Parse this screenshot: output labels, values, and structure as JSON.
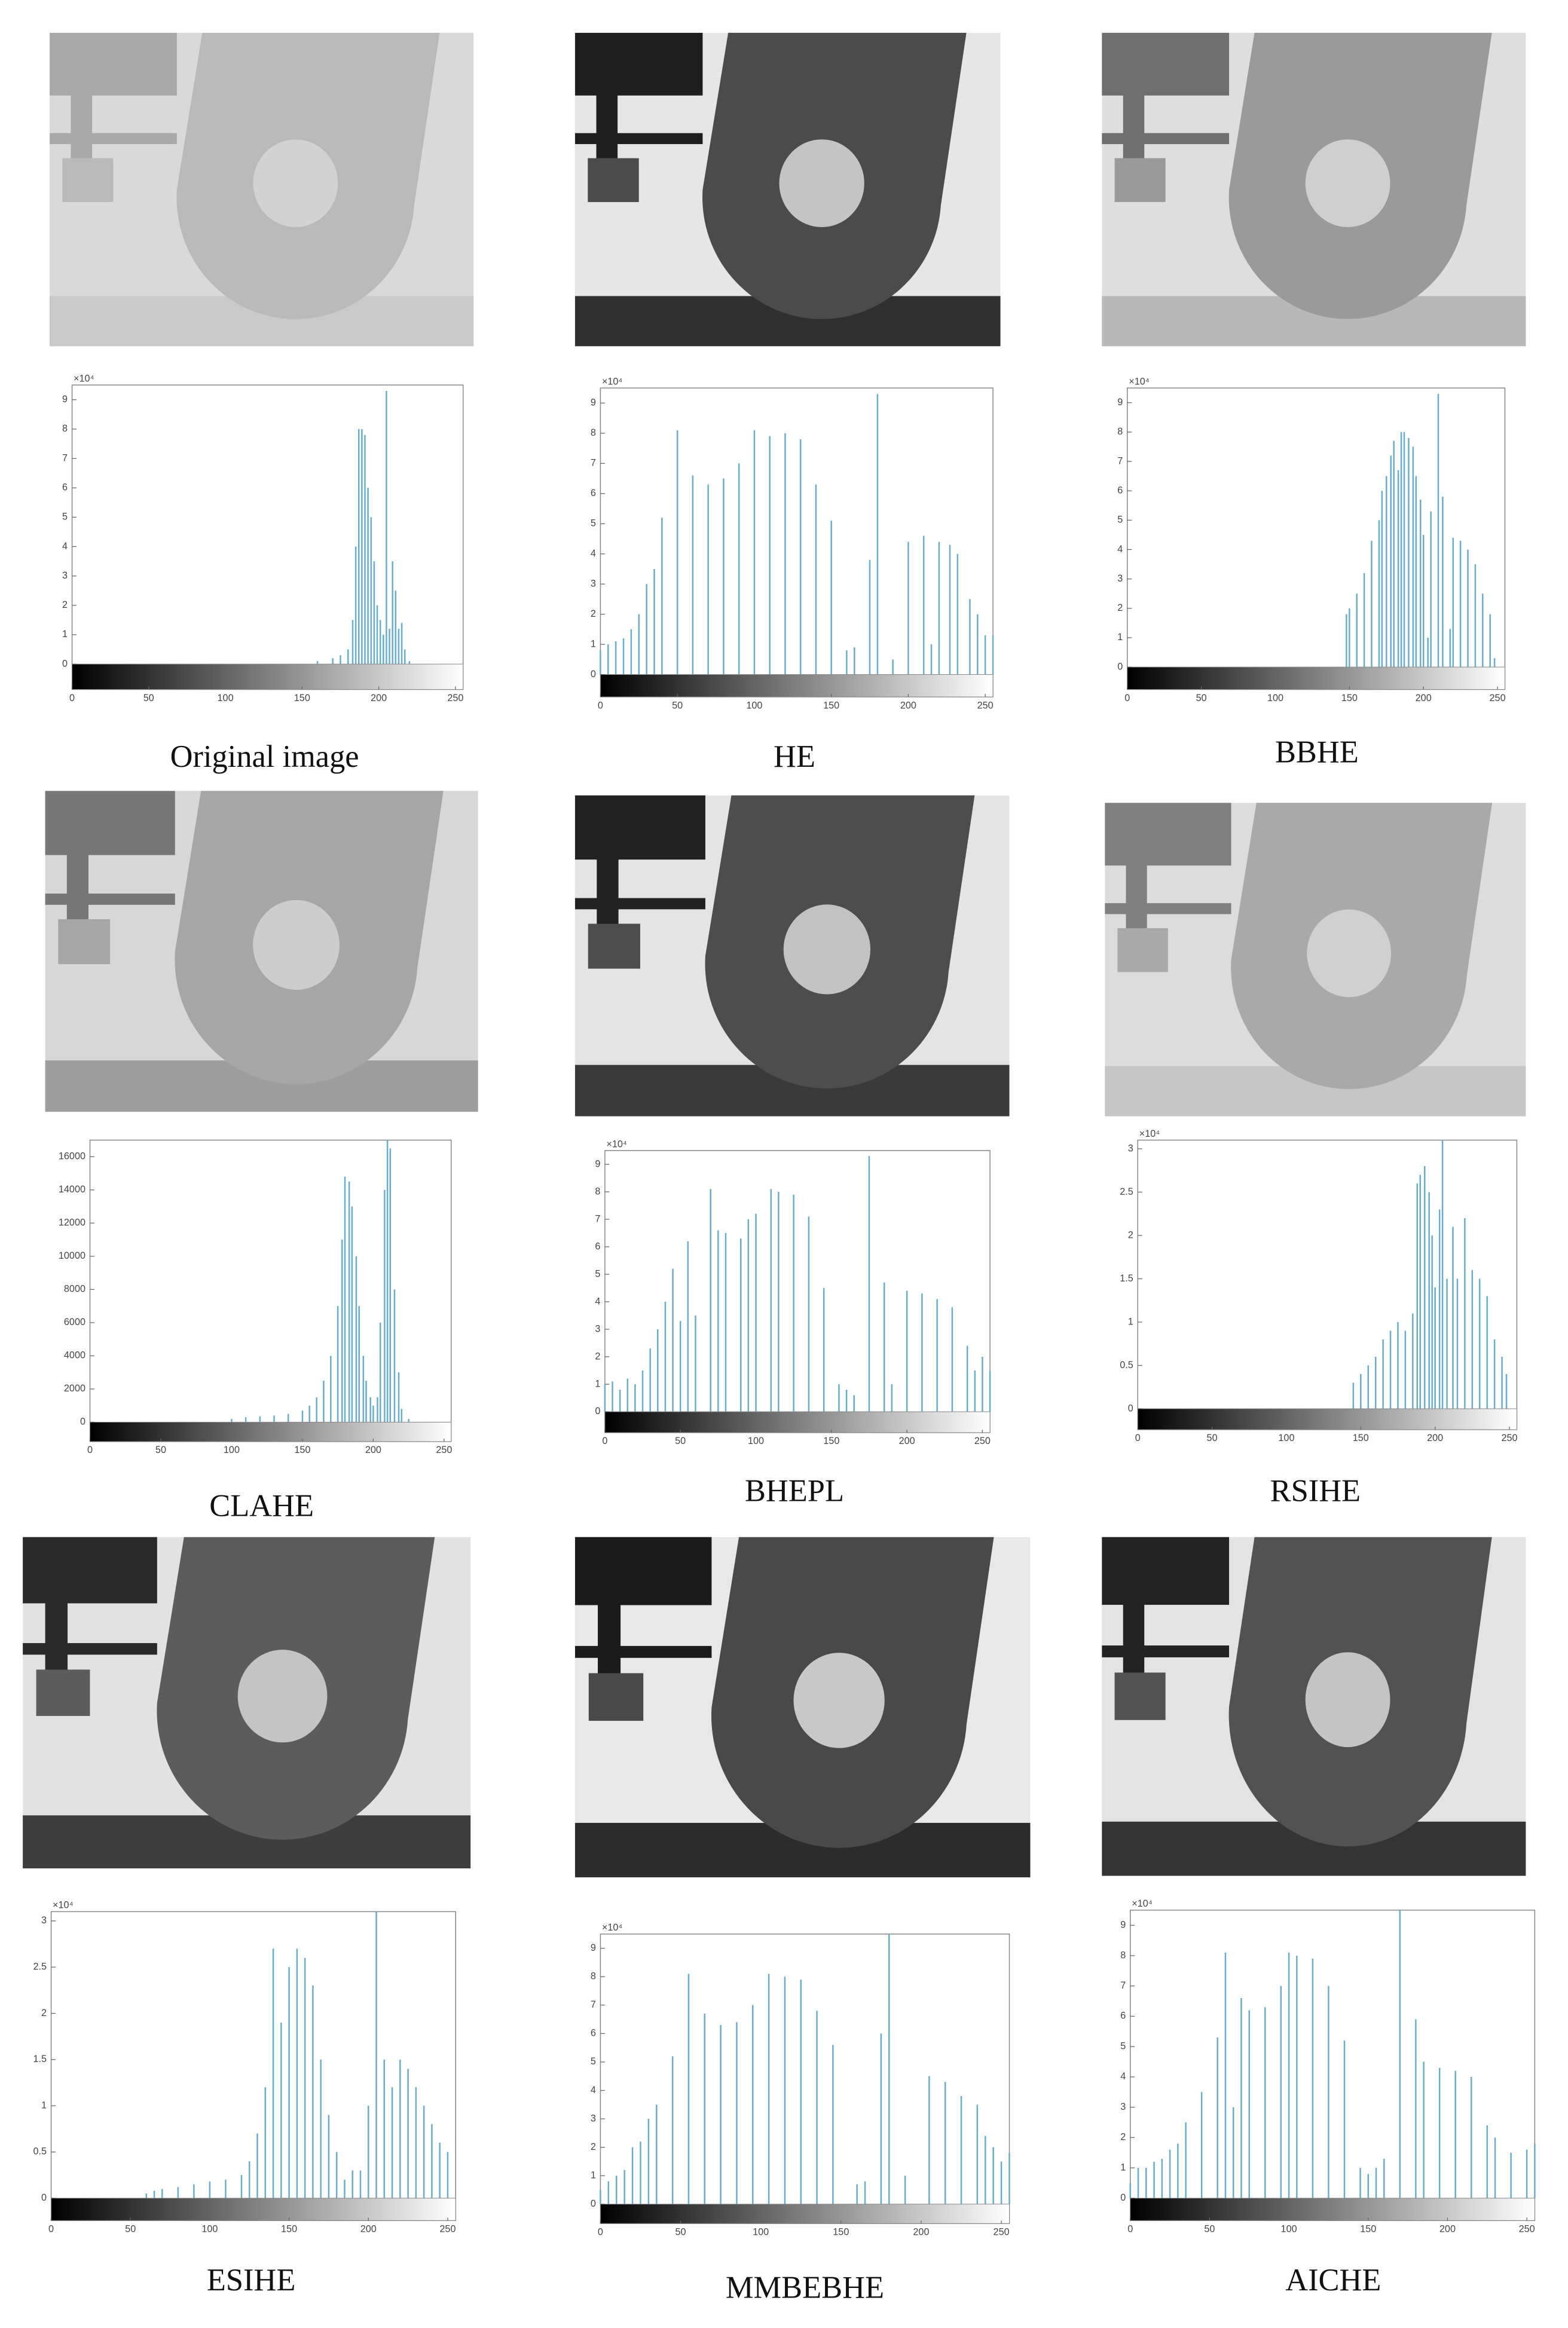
{
  "chart_data": [
    {
      "type": "bar",
      "caption": "Original image",
      "y_multiplier": "×10⁴",
      "color": "#6aaccb",
      "x": [
        160,
        170,
        175,
        180,
        183,
        185,
        187,
        189,
        191,
        193,
        195,
        197,
        199,
        201,
        203,
        205,
        207,
        209,
        211,
        213,
        215,
        217,
        220
      ],
      "values": [
        0.1,
        0.2,
        0.3,
        0.5,
        1.5,
        4,
        8,
        8,
        7.8,
        6,
        5,
        3.5,
        2,
        1.5,
        1,
        9.3,
        1.2,
        3.5,
        2.5,
        1.2,
        1.4,
        0.5,
        0.1
      ],
      "xlim": [
        0,
        255
      ],
      "xticks": [
        0,
        50,
        100,
        150,
        200,
        250
      ],
      "ylim": [
        0,
        9.5
      ],
      "yticks": [
        0,
        1,
        2,
        3,
        4,
        5,
        6,
        7,
        8,
        9
      ]
    },
    {
      "type": "bar",
      "caption": "HE",
      "y_multiplier": "×10⁴",
      "color": "#6aaccb",
      "x": [
        0,
        5,
        10,
        15,
        20,
        25,
        30,
        35,
        40,
        50,
        60,
        70,
        80,
        90,
        100,
        110,
        120,
        130,
        140,
        150,
        160,
        165,
        175,
        180,
        190,
        200,
        210,
        215,
        220,
        227,
        232,
        240,
        245,
        250,
        255
      ],
      "values": [
        0.8,
        1,
        1.1,
        1.2,
        1.5,
        2,
        3,
        3.5,
        5.2,
        8.1,
        6.6,
        6.3,
        6.5,
        7,
        8.1,
        7.9,
        8,
        7.8,
        6.3,
        5.1,
        0.8,
        0.9,
        3.8,
        9.3,
        0.5,
        4.4,
        4.6,
        1,
        4.4,
        4.3,
        4,
        2.5,
        2,
        1.3,
        1.3
      ],
      "xlim": [
        0,
        255
      ],
      "xticks": [
        0,
        50,
        100,
        150,
        200,
        250
      ],
      "ylim": [
        0,
        9.5
      ],
      "yticks": [
        0,
        1,
        2,
        3,
        4,
        5,
        6,
        7,
        8,
        9
      ]
    },
    {
      "type": "bar",
      "caption": "BBHE",
      "y_multiplier": "×10⁴",
      "color": "#6aaccb",
      "x": [
        148,
        150,
        155,
        160,
        165,
        170,
        172,
        175,
        178,
        180,
        183,
        185,
        187,
        190,
        193,
        195,
        198,
        200,
        203,
        205,
        210,
        213,
        218,
        220,
        225,
        230,
        235,
        240,
        245,
        248
      ],
      "values": [
        1.8,
        2,
        2.5,
        3.2,
        4.3,
        5,
        6,
        6.5,
        7.2,
        7.7,
        6.7,
        8,
        8,
        7.8,
        7.5,
        6.5,
        5.7,
        4.5,
        1,
        5.3,
        9.3,
        5.8,
        1.3,
        4.4,
        4.3,
        4,
        3.5,
        2.5,
        1.8,
        0.3
      ],
      "xlim": [
        0,
        255
      ],
      "xticks": [
        0,
        50,
        100,
        150,
        200,
        250
      ],
      "ylim": [
        0,
        9.5
      ],
      "yticks": [
        0,
        1,
        2,
        3,
        4,
        5,
        6,
        7,
        8,
        9
      ]
    },
    {
      "type": "bar",
      "caption": "CLAHE",
      "color": "#6aaccb",
      "x": [
        100,
        110,
        120,
        130,
        140,
        150,
        155,
        160,
        165,
        170,
        175,
        178,
        180,
        183,
        185,
        188,
        190,
        193,
        195,
        198,
        200,
        203,
        205,
        208,
        210,
        212,
        215,
        218,
        220,
        225
      ],
      "values": [
        200,
        300,
        350,
        400,
        500,
        700,
        1000,
        1500,
        2500,
        4000,
        7000,
        11000,
        14800,
        14500,
        13000,
        10000,
        7000,
        4000,
        2500,
        1500,
        1000,
        1500,
        6000,
        14000,
        17000,
        16500,
        8000,
        3000,
        800,
        200
      ],
      "xlim": [
        0,
        255
      ],
      "xticks": [
        0,
        50,
        100,
        150,
        200,
        250
      ],
      "ylim": [
        0,
        17000
      ],
      "yticks": [
        0,
        2000,
        4000,
        6000,
        8000,
        10000,
        12000,
        14000,
        16000
      ]
    },
    {
      "type": "bar",
      "caption": "BHEPL",
      "y_multiplier": "×10⁴",
      "color": "#6aaccb",
      "x": [
        0,
        5,
        10,
        15,
        20,
        25,
        30,
        35,
        40,
        45,
        50,
        55,
        60,
        70,
        75,
        80,
        90,
        95,
        100,
        110,
        115,
        125,
        135,
        145,
        155,
        160,
        165,
        175,
        185,
        190,
        200,
        210,
        220,
        230,
        240,
        245,
        250,
        255
      ],
      "values": [
        1,
        1.1,
        0.8,
        1.2,
        1,
        1.5,
        2.3,
        3,
        4,
        5.2,
        3.3,
        6.2,
        3.5,
        8.1,
        6.6,
        6.5,
        6.3,
        7,
        7.2,
        8.1,
        8,
        7.9,
        7.1,
        4.5,
        1,
        0.8,
        0.6,
        9.3,
        4.7,
        1,
        4.4,
        4.3,
        4.1,
        3.8,
        2.4,
        1.5,
        2,
        1.5
      ],
      "xlim": [
        0,
        255
      ],
      "xticks": [
        0,
        50,
        100,
        150,
        200,
        250
      ],
      "ylim": [
        0,
        9.5
      ],
      "yticks": [
        0,
        1,
        2,
        3,
        4,
        5,
        6,
        7,
        8,
        9
      ]
    },
    {
      "type": "bar",
      "caption": "RSIHE",
      "y_multiplier": "×10⁴",
      "color": "#6aaccb",
      "x": [
        145,
        150,
        155,
        160,
        165,
        170,
        175,
        180,
        185,
        188,
        190,
        193,
        196,
        198,
        200,
        203,
        205,
        208,
        212,
        215,
        220,
        225,
        230,
        235,
        240,
        245,
        248
      ],
      "values": [
        0.3,
        0.4,
        0.5,
        0.6,
        0.8,
        0.9,
        1,
        0.9,
        1.1,
        2.6,
        2.7,
        2.8,
        2.5,
        2,
        1.4,
        2.3,
        3.1,
        1.5,
        2.1,
        1.5,
        2.2,
        1.6,
        1.5,
        1.3,
        0.8,
        0.6,
        0.4
      ],
      "xlim": [
        0,
        255
      ],
      "xticks": [
        0,
        50,
        100,
        150,
        200,
        250
      ],
      "ylim": [
        0,
        3.1
      ],
      "yticks": [
        0,
        0.5,
        1,
        1.5,
        2,
        2.5,
        3
      ]
    },
    {
      "type": "bar",
      "caption": "ESIHE",
      "y_multiplier": "×10⁴",
      "color": "#6aaccb",
      "x": [
        60,
        65,
        70,
        80,
        90,
        100,
        110,
        120,
        125,
        130,
        135,
        140,
        145,
        150,
        155,
        160,
        165,
        170,
        175,
        180,
        185,
        190,
        195,
        200,
        205,
        210,
        215,
        220,
        225,
        230,
        235,
        240,
        245,
        250
      ],
      "values": [
        0.05,
        0.08,
        0.1,
        0.12,
        0.15,
        0.18,
        0.2,
        0.25,
        0.4,
        0.7,
        1.2,
        2.7,
        1.9,
        2.5,
        2.7,
        2.6,
        2.3,
        1.5,
        0.9,
        0.5,
        0.2,
        0.3,
        0.3,
        1,
        3.1,
        1.5,
        1.2,
        1.5,
        1.4,
        1.2,
        1,
        0.8,
        0.6,
        0.5
      ],
      "xlim": [
        0,
        255
      ],
      "xticks": [
        0,
        50,
        100,
        150,
        200,
        250
      ],
      "ylim": [
        0,
        3.1
      ],
      "yticks": [
        0,
        0.5,
        1,
        1.5,
        2,
        2.5,
        3
      ]
    },
    {
      "type": "bar",
      "caption": "MMBEBHE",
      "y_multiplier": "×10⁴",
      "color": "#6aaccb",
      "x": [
        0,
        5,
        10,
        15,
        20,
        25,
        30,
        35,
        45,
        55,
        65,
        75,
        85,
        95,
        105,
        115,
        125,
        135,
        145,
        160,
        165,
        175,
        180,
        190,
        205,
        215,
        225,
        235,
        240,
        245,
        250,
        255
      ],
      "values": [
        0.5,
        0.8,
        1,
        1.2,
        2,
        2.2,
        3,
        3.5,
        5.2,
        8.1,
        6.7,
        6.3,
        6.4,
        7,
        8.1,
        8,
        7.9,
        6.8,
        5.6,
        0.7,
        0.8,
        6,
        9.5,
        1,
        4.5,
        4.3,
        3.8,
        3.5,
        2.4,
        2,
        1.5,
        1.8
      ],
      "xlim": [
        0,
        255
      ],
      "xticks": [
        0,
        50,
        100,
        150,
        200,
        250
      ],
      "ylim": [
        0,
        9.5
      ],
      "yticks": [
        0,
        1,
        2,
        3,
        4,
        5,
        6,
        7,
        8,
        9
      ]
    },
    {
      "type": "bar",
      "caption": "AICHE",
      "y_multiplier": "×10⁴",
      "color": "#6aaccb",
      "x": [
        0,
        5,
        10,
        15,
        20,
        25,
        30,
        35,
        45,
        55,
        60,
        65,
        70,
        75,
        85,
        95,
        100,
        105,
        115,
        125,
        135,
        145,
        150,
        155,
        160,
        170,
        180,
        185,
        195,
        205,
        215,
        225,
        230,
        240,
        250,
        255
      ],
      "values": [
        0.5,
        1,
        1,
        1.2,
        1.3,
        1.6,
        1.8,
        2.5,
        3.5,
        5.3,
        8.1,
        3,
        6.6,
        6.2,
        6.3,
        7,
        8.1,
        8,
        7.9,
        7,
        5.2,
        1,
        0.8,
        1,
        1.3,
        9.5,
        5.9,
        4.5,
        4.3,
        4.2,
        4,
        2.4,
        2,
        1.5,
        1.6,
        1.8
      ],
      "xlim": [
        0,
        255
      ],
      "xticks": [
        0,
        50,
        100,
        150,
        200,
        250
      ],
      "ylim": [
        0,
        9.5
      ],
      "yticks": [
        0,
        1,
        2,
        3,
        4,
        5,
        6,
        7,
        8,
        9
      ]
    }
  ]
}
